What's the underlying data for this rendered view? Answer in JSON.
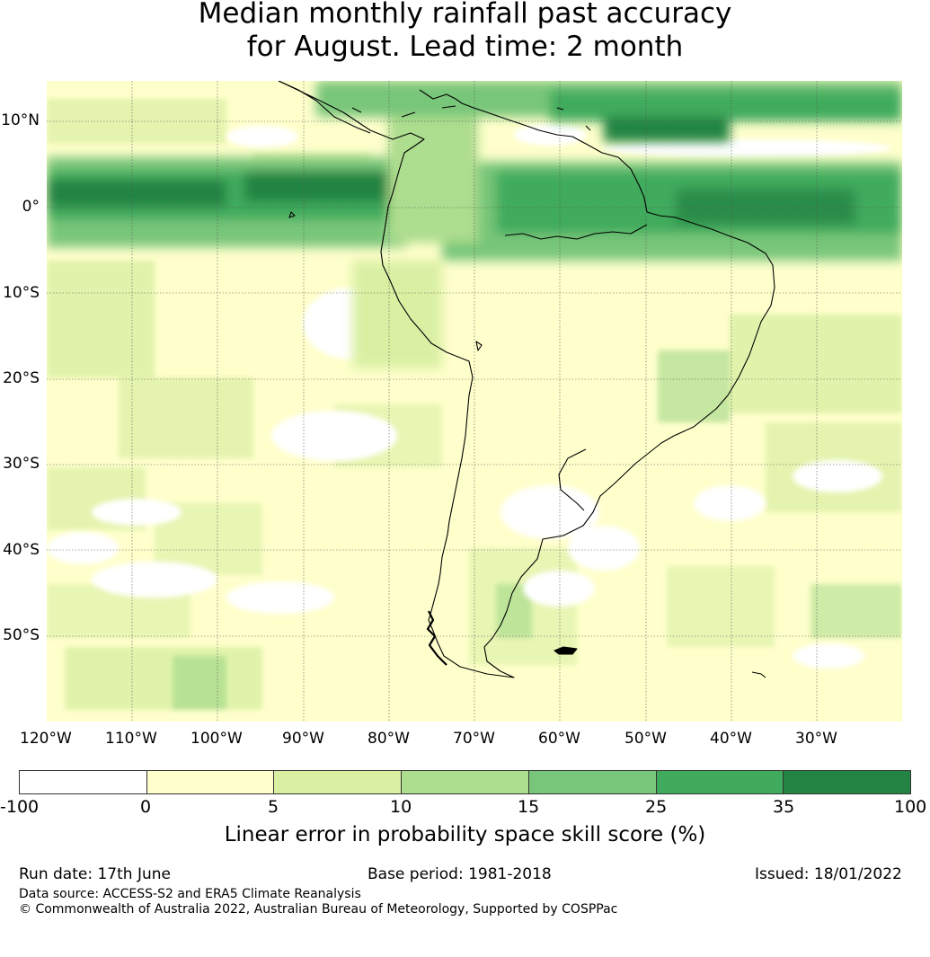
{
  "title": {
    "line1": "Median monthly rainfall past accuracy",
    "line2": "for August. Lead time: 2 month"
  },
  "map": {
    "lon_labels": [
      "120°W",
      "110°W",
      "100°W",
      "90°W",
      "80°W",
      "70°W",
      "60°W",
      "50°W",
      "40°W",
      "30°W"
    ],
    "lat_labels": [
      "10°N",
      "0°",
      "10°S",
      "20°S",
      "30°S",
      "40°S",
      "50°S"
    ],
    "region": "South America"
  },
  "legend": {
    "ticks": [
      "-100",
      "0",
      "5",
      "10",
      "15",
      "25",
      "35",
      "100"
    ],
    "colors": [
      "#ffffff",
      "#ffffcc",
      "#d9f0a3",
      "#addd8e",
      "#78c679",
      "#41ab5d",
      "#238443"
    ],
    "label": "Linear error in probability space skill score (%)"
  },
  "footer": {
    "run_date": "Run date: 17th June",
    "base_period": "Base period: 1981-2018",
    "issued": "Issued: 18/01/2022",
    "data_source": "Data source: ACCESS-S2 and ERA5 Climate Reanalysis",
    "copyright": "© Commonwealth of Australia 2022, Australian Bureau of Meteorology, Supported by COSPPac"
  }
}
